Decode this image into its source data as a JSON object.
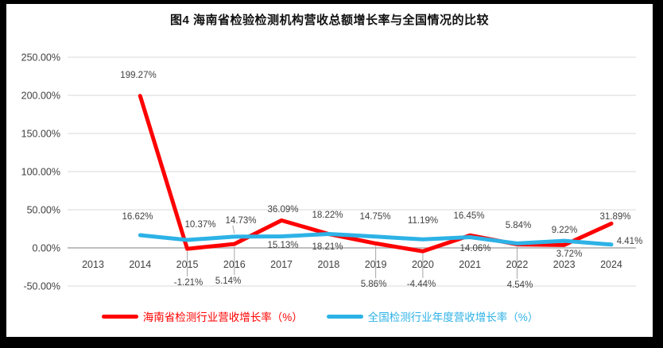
{
  "chart_data": {
    "type": "line",
    "title": "图4  海南省检验检测机构营收总额增长率与全国情况的比较",
    "categories": [
      "2013",
      "2014",
      "2015",
      "2016",
      "2017",
      "2018",
      "2019",
      "2020",
      "2021",
      "2022",
      "2023",
      "2024"
    ],
    "series": [
      {
        "name": "海南省检测行业营收增长率（%）",
        "color": "#FF0000",
        "values": [
          null,
          199.27,
          -1.21,
          5.14,
          36.09,
          18.22,
          5.86,
          -4.44,
          16.45,
          4.54,
          3.72,
          31.89
        ]
      },
      {
        "name": "全国检测行业年度营收增长率（%）",
        "color": "#2DB2E6",
        "values": [
          null,
          16.62,
          10.37,
          14.73,
          15.13,
          18.21,
          14.75,
          11.19,
          14.06,
          5.84,
          9.22,
          4.41
        ]
      }
    ],
    "ylim": [
      -50,
      250
    ],
    "ytick_step": 50,
    "ytick_labels": [
      "250.00%",
      "200.00%",
      "150.00%",
      "100.00%",
      "50.00%",
      "0.00%",
      "-50.00%"
    ],
    "grid": true,
    "legend_position": "bottom",
    "colors": {
      "gridline": "#D9D9D9",
      "axis": "#ABABAB",
      "label": "#404040",
      "leader": "#A6A6A6",
      "frame": "#000000"
    }
  }
}
